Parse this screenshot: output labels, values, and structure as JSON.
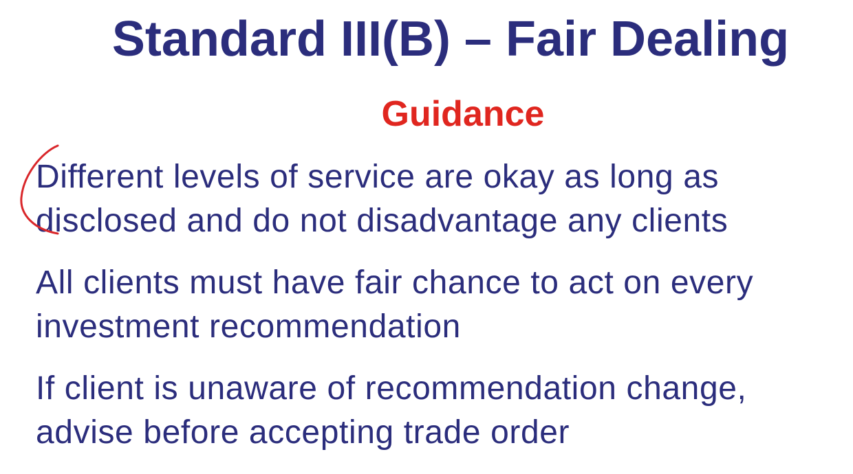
{
  "slide": {
    "title": "Standard III(B) – Fair Dealing",
    "subtitle": "Guidance",
    "bullets": [
      "Different levels of service are okay as long as disclosed and do not disadvantage any clients",
      "All clients must have fair chance to act on every investment recommendation",
      "If client is unaware of recommendation change, advise before accepting trade order"
    ]
  },
  "colors": {
    "title": "#2b2d7c",
    "subtitle": "#e0261f",
    "body": "#2b2d7c",
    "annotation": "#d9262a"
  }
}
